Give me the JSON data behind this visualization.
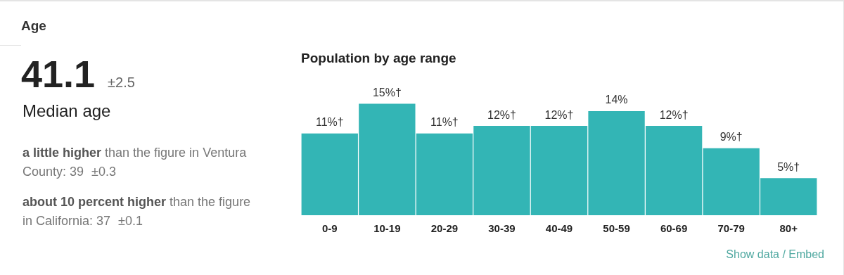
{
  "chart_data": [
    {
      "type": "other",
      "title": "Age",
      "annotations": [
        "41.1",
        "±2.5",
        "Median age",
        "a little higher",
        "than the figure in Ventura County: 39",
        "±0.3",
        "about 10 percent higher",
        "than the figure in California: 37",
        "±0.1"
      ]
    },
    {
      "type": "bar",
      "title": "Population by age range",
      "categories": [
        "0-9",
        "10-19",
        "20-29",
        "30-39",
        "40-49",
        "50-59",
        "60-69",
        "70-79",
        "80+"
      ],
      "values": [
        11,
        15,
        11,
        12,
        12,
        14,
        12,
        9,
        5
      ],
      "value_labels": [
        "11%†",
        "15%†",
        "11%†",
        "12%†",
        "12%†",
        "14%",
        "12%†",
        "9%†",
        "5%†"
      ],
      "color": "#33b5b5",
      "grid": false,
      "legend": false,
      "tick_labels": "x",
      "annotations": [
        "Show data / Embed"
      ]
    }
  ]
}
